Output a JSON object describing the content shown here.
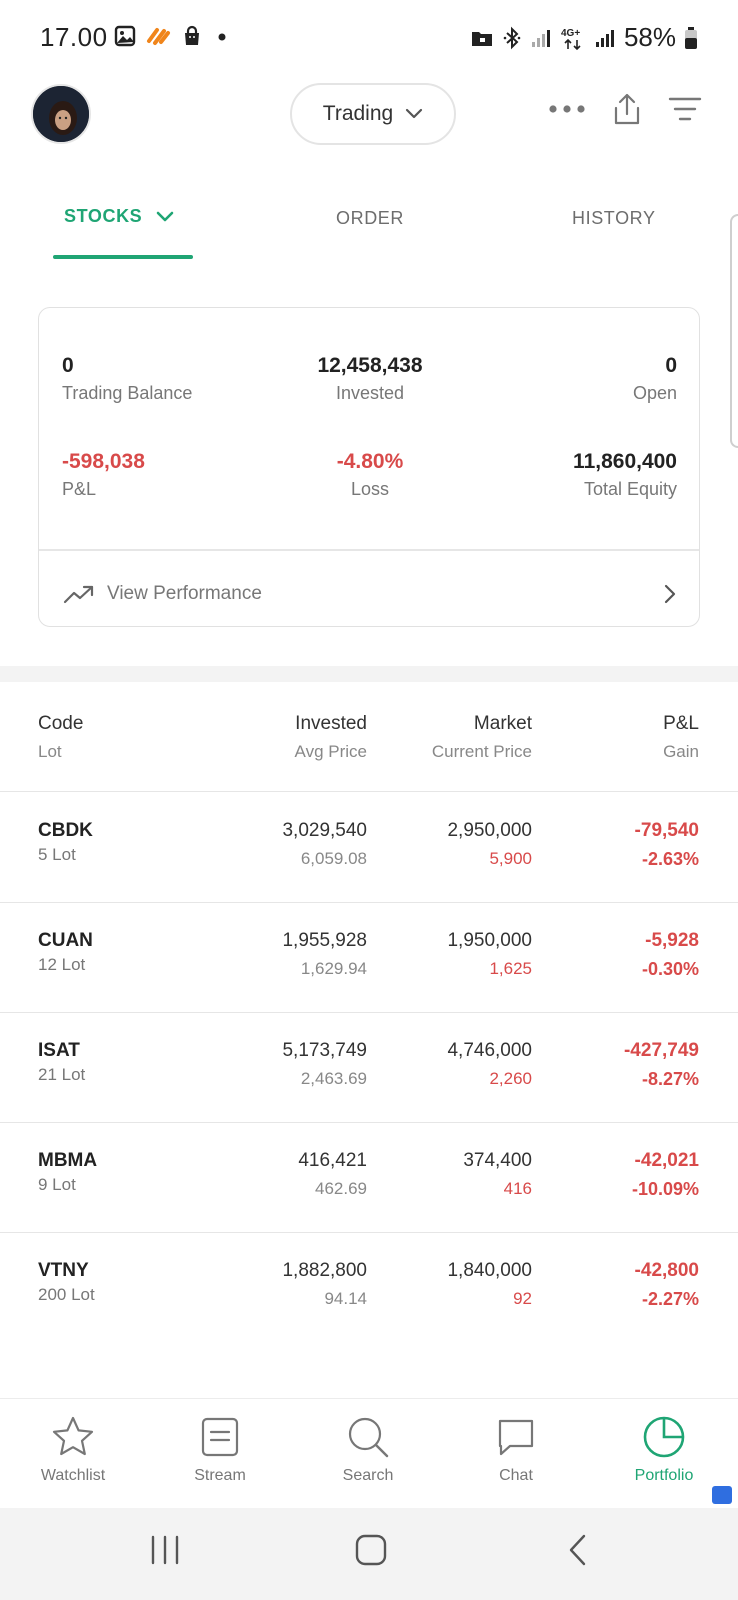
{
  "status_bar": {
    "time": "17.00",
    "battery": "58%",
    "network": "4G+",
    "left_icons": [
      "gallery-icon",
      "shopee-icon",
      "bag-icon",
      "dot-icon"
    ],
    "right_icons": [
      "folder-lock-icon",
      "bluetooth-icon",
      "signal-icon",
      "signal-icon",
      "battery-icon"
    ]
  },
  "header": {
    "mode": "Trading",
    "icons": [
      "more-icon",
      "share-icon",
      "filter-icon"
    ]
  },
  "tabs": [
    {
      "label": "STOCKS",
      "active": true
    },
    {
      "label": "ORDER",
      "active": false
    },
    {
      "label": "HISTORY",
      "active": false
    }
  ],
  "summary": {
    "trading_balance": {
      "value": "0",
      "label": "Trading Balance"
    },
    "invested": {
      "value": "12,458,438",
      "label": "Invested"
    },
    "open": {
      "value": "0",
      "label": "Open"
    },
    "pnl": {
      "value": "-598,038",
      "label": "P&L"
    },
    "loss": {
      "value": "-4.80%",
      "label": "Loss"
    },
    "total_equity": {
      "value": "11,860,400",
      "label": "Total Equity"
    },
    "view_performance": "View Performance"
  },
  "table": {
    "headers": {
      "code": "Code",
      "lot": "Lot",
      "invested": "Invested",
      "avg_price": "Avg Price",
      "market": "Market",
      "current_price": "Current Price",
      "pnl": "P&L",
      "gain": "Gain"
    },
    "rows": [
      {
        "code": "CBDK",
        "lot": "5 Lot",
        "invested": "3,029,540",
        "avg_price": "6,059.08",
        "market": "2,950,000",
        "current_price": "5,900",
        "pnl": "-79,540",
        "gain": "-2.63%"
      },
      {
        "code": "CUAN",
        "lot": "12 Lot",
        "invested": "1,955,928",
        "avg_price": "1,629.94",
        "market": "1,950,000",
        "current_price": "1,625",
        "pnl": "-5,928",
        "gain": "-0.30%"
      },
      {
        "code": "ISAT",
        "lot": "21 Lot",
        "invested": "5,173,749",
        "avg_price": "2,463.69",
        "market": "4,746,000",
        "current_price": "2,260",
        "pnl": "-427,749",
        "gain": "-8.27%"
      },
      {
        "code": "MBMA",
        "lot": "9 Lot",
        "invested": "416,421",
        "avg_price": "462.69",
        "market": "374,400",
        "current_price": "416",
        "pnl": "-42,021",
        "gain": "-10.09%"
      },
      {
        "code": "VTNY",
        "lot": "200 Lot",
        "invested": "1,882,800",
        "avg_price": "94.14",
        "market": "1,840,000",
        "current_price": "92",
        "pnl": "-42,800",
        "gain": "-2.27%"
      }
    ]
  },
  "bottom_nav": [
    {
      "label": "Watchlist",
      "icon": "star-icon",
      "active": false
    },
    {
      "label": "Stream",
      "icon": "stream-icon",
      "active": false
    },
    {
      "label": "Search",
      "icon": "search-icon",
      "active": false
    },
    {
      "label": "Chat",
      "icon": "chat-icon",
      "active": false
    },
    {
      "label": "Portfolio",
      "icon": "pie-chart-icon",
      "active": true
    }
  ],
  "colors": {
    "accent_green": "#1fa574",
    "negative_red": "#d84a4a",
    "text_dark": "#222222",
    "text_muted": "#777777"
  }
}
